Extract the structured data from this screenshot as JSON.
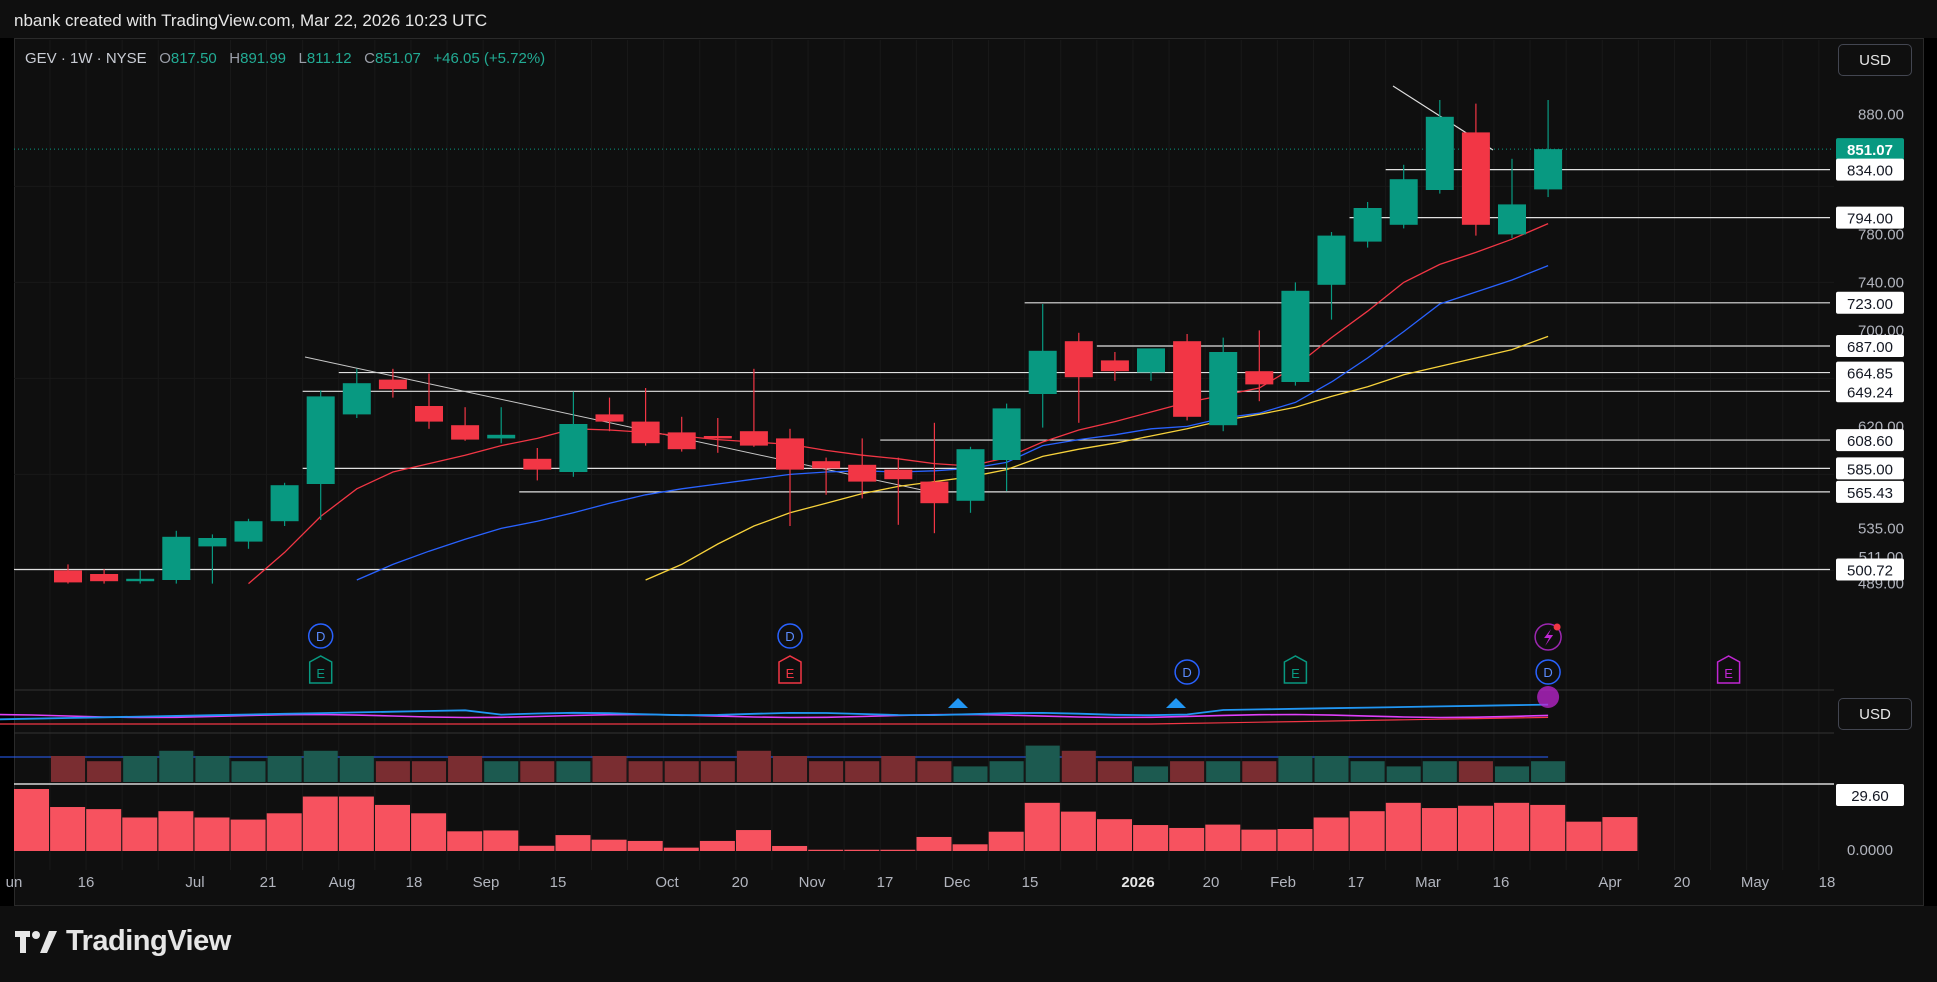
{
  "header": {
    "credit": "nbank created with TradingView.com, Mar 22, 2026 10:23 UTC"
  },
  "legend": {
    "symbol": "GEV · 1W · NYSE",
    "open_label": "O",
    "open": "817.50",
    "high_label": "H",
    "high": "891.99",
    "low_label": "L",
    "low": "811.12",
    "close_label": "C",
    "close": "851.07",
    "change": "+46.05 (+5.72%)"
  },
  "currency_main": "USD",
  "currency_indicator": "USD",
  "brand": "TradingView",
  "colors": {
    "up": "#089981",
    "down": "#f23645",
    "ma_fast": "#f23645",
    "ma_mid": "#2962ff",
    "ma_slow": "#f7d23b",
    "hist_down": "#f7525f",
    "vol_up": "#1c5a50",
    "vol_down": "#7a2d31"
  },
  "chart_data": [
    {
      "type": "candlestick",
      "symbol": "GEV",
      "interval": "1W",
      "exchange": "NYSE",
      "y_axis_ticks": [
        "880.00",
        "780.00",
        "740.00",
        "700.00",
        "620.00",
        "535.00",
        "511.00",
        "489.00"
      ],
      "y_axis_badges": [
        {
          "label": "851.07",
          "style": "last-price"
        },
        {
          "label": "834.00",
          "style": "level"
        },
        {
          "label": "794.00",
          "style": "level"
        },
        {
          "label": "723.00",
          "style": "level"
        },
        {
          "label": "687.00",
          "style": "level"
        },
        {
          "label": "664.85",
          "style": "level"
        },
        {
          "label": "649.24",
          "style": "level"
        },
        {
          "label": "608.60",
          "style": "level"
        },
        {
          "label": "585.00",
          "style": "level"
        },
        {
          "label": "565.43",
          "style": "level"
        },
        {
          "label": "500.72",
          "style": "level"
        }
      ],
      "horizontal_levels": [
        834,
        794,
        723,
        687,
        664.85,
        649.24,
        608.6,
        585,
        565.43,
        500.72
      ],
      "x_axis_ticks": [
        "un",
        "16",
        "Jul",
        "21",
        "Aug",
        "18",
        "Sep",
        "15",
        "Oct",
        "20",
        "Nov",
        "17",
        "Dec",
        "15",
        "2026",
        "20",
        "Feb",
        "17",
        "Mar",
        "16",
        "Apr",
        "20",
        "May",
        "18"
      ],
      "candles": [
        {
          "o": 500,
          "h": 505,
          "l": 489,
          "c": 490
        },
        {
          "o": 497,
          "h": 501,
          "l": 489,
          "c": 491
        },
        {
          "o": 491,
          "h": 500,
          "l": 489,
          "c": 493
        },
        {
          "o": 492,
          "h": 533,
          "l": 489,
          "c": 528
        },
        {
          "o": 520,
          "h": 530,
          "l": 489,
          "c": 527
        },
        {
          "o": 524,
          "h": 543,
          "l": 518,
          "c": 541
        },
        {
          "o": 541,
          "h": 573,
          "l": 537,
          "c": 571
        },
        {
          "o": 572,
          "h": 650,
          "l": 542,
          "c": 645
        },
        {
          "o": 630,
          "h": 668,
          "l": 627,
          "c": 656
        },
        {
          "o": 659,
          "h": 668,
          "l": 644,
          "c": 651
        },
        {
          "o": 637,
          "h": 664,
          "l": 618,
          "c": 624
        },
        {
          "o": 621,
          "h": 636,
          "l": 608,
          "c": 609
        },
        {
          "o": 610,
          "h": 636,
          "l": 606,
          "c": 613
        },
        {
          "o": 593,
          "h": 602,
          "l": 575,
          "c": 584
        },
        {
          "o": 582,
          "h": 649,
          "l": 578,
          "c": 622
        },
        {
          "o": 630,
          "h": 644,
          "l": 616,
          "c": 624
        },
        {
          "o": 624,
          "h": 652,
          "l": 604,
          "c": 606
        },
        {
          "o": 615,
          "h": 628,
          "l": 599,
          "c": 601
        },
        {
          "o": 612,
          "h": 627,
          "l": 598,
          "c": 610
        },
        {
          "o": 616,
          "h": 668,
          "l": 603,
          "c": 604
        },
        {
          "o": 610,
          "h": 618,
          "l": 537,
          "c": 584
        },
        {
          "o": 591,
          "h": 594,
          "l": 563,
          "c": 585
        },
        {
          "o": 588,
          "h": 610,
          "l": 560,
          "c": 574
        },
        {
          "o": 584,
          "h": 594,
          "l": 538,
          "c": 576
        },
        {
          "o": 574,
          "h": 623,
          "l": 531,
          "c": 556
        },
        {
          "o": 558,
          "h": 603,
          "l": 548,
          "c": 601
        },
        {
          "o": 592,
          "h": 639,
          "l": 566,
          "c": 635
        },
        {
          "o": 647,
          "h": 722,
          "l": 619,
          "c": 683
        },
        {
          "o": 691,
          "h": 698,
          "l": 623,
          "c": 661
        },
        {
          "o": 675,
          "h": 682,
          "l": 658,
          "c": 666
        },
        {
          "o": 665,
          "h": 684,
          "l": 658,
          "c": 685
        },
        {
          "o": 691,
          "h": 697,
          "l": 625,
          "c": 628
        },
        {
          "o": 621,
          "h": 694,
          "l": 616,
          "c": 682
        },
        {
          "o": 666,
          "h": 700,
          "l": 641,
          "c": 655
        },
        {
          "o": 657,
          "h": 740,
          "l": 654,
          "c": 733
        },
        {
          "o": 738,
          "h": 782,
          "l": 709,
          "c": 779
        },
        {
          "o": 774,
          "h": 807,
          "l": 769,
          "c": 802
        },
        {
          "o": 788,
          "h": 838,
          "l": 785,
          "c": 826
        },
        {
          "o": 817,
          "h": 892,
          "l": 814,
          "c": 878
        },
        {
          "o": 865,
          "h": 889,
          "l": 779,
          "c": 788
        },
        {
          "o": 780,
          "h": 843,
          "l": 777,
          "c": 805
        },
        {
          "o": 817.5,
          "h": 891.99,
          "l": 811.12,
          "c": 851.07
        }
      ],
      "moving_averages": [
        {
          "values": [
            null,
            null,
            null,
            null,
            null,
            489,
            515,
            545,
            568,
            582,
            589,
            596,
            604,
            610,
            618,
            617,
            615,
            612,
            609,
            607,
            605,
            600,
            596,
            593,
            589,
            587,
            594,
            607,
            617,
            624,
            632,
            640,
            646,
            652,
            670,
            694,
            716,
            740,
            755,
            765,
            776,
            789
          ]
        },
        {
          "values": [
            null,
            null,
            null,
            null,
            null,
            null,
            null,
            null,
            492,
            505,
            516,
            526,
            535,
            541,
            548,
            556,
            563,
            568,
            572,
            576,
            580,
            582,
            583,
            582,
            583,
            585,
            590,
            604,
            609,
            613,
            618,
            620,
            627,
            631,
            640,
            657,
            677,
            699,
            722,
            732,
            742,
            754
          ]
        },
        {
          "values": [
            null,
            null,
            null,
            null,
            null,
            null,
            null,
            null,
            null,
            null,
            null,
            null,
            null,
            null,
            null,
            null,
            492,
            505,
            522,
            537,
            548,
            556,
            564,
            570,
            574,
            578,
            584,
            595,
            601,
            606,
            612,
            618,
            625,
            630,
            636,
            645,
            653,
            663,
            670,
            677,
            684,
            695
          ]
        }
      ],
      "markers": [
        {
          "bar": 7,
          "label": "D",
          "kind": "dividend"
        },
        {
          "bar": 7,
          "label": "E",
          "kind": "earnings"
        },
        {
          "bar": 20,
          "label": "D",
          "kind": "dividend"
        },
        {
          "bar": 20,
          "label": "E",
          "kind": "earnings"
        },
        {
          "bar": 31,
          "label": "D",
          "kind": "dividend"
        },
        {
          "bar": 34,
          "label": "E",
          "kind": "earnings"
        },
        {
          "bar": 41,
          "label": "D",
          "kind": "dividend"
        },
        {
          "bar": 46,
          "label": "E",
          "kind": "earnings-upcoming"
        }
      ]
    },
    {
      "type": "volume",
      "values": [
        5,
        4,
        5,
        6,
        5,
        4,
        5,
        6,
        5,
        4,
        4,
        5,
        4,
        4,
        4,
        5,
        4,
        4,
        4,
        6,
        5,
        4,
        4,
        5,
        4,
        3,
        4,
        7,
        6,
        4,
        3,
        4,
        4,
        4,
        5,
        5,
        4,
        3,
        4,
        4,
        3,
        4
      ]
    },
    {
      "type": "bar",
      "axis_ticks": [
        "29.60",
        "0.0000"
      ],
      "values": [
        29.6,
        21,
        20,
        16,
        19,
        16,
        15,
        18,
        26,
        26,
        22,
        18,
        9.4,
        9.8,
        2.5,
        7.6,
        5.4,
        4.8,
        1.6,
        4.8,
        10,
        2.4,
        0.6,
        0.6,
        0.6,
        6.7,
        3.2,
        9.2,
        23,
        18.8,
        15.2,
        12.4,
        11,
        12.6,
        10.2,
        10.5,
        16,
        19,
        23,
        20.5,
        21.6,
        23,
        22,
        14,
        16.2
      ]
    }
  ]
}
